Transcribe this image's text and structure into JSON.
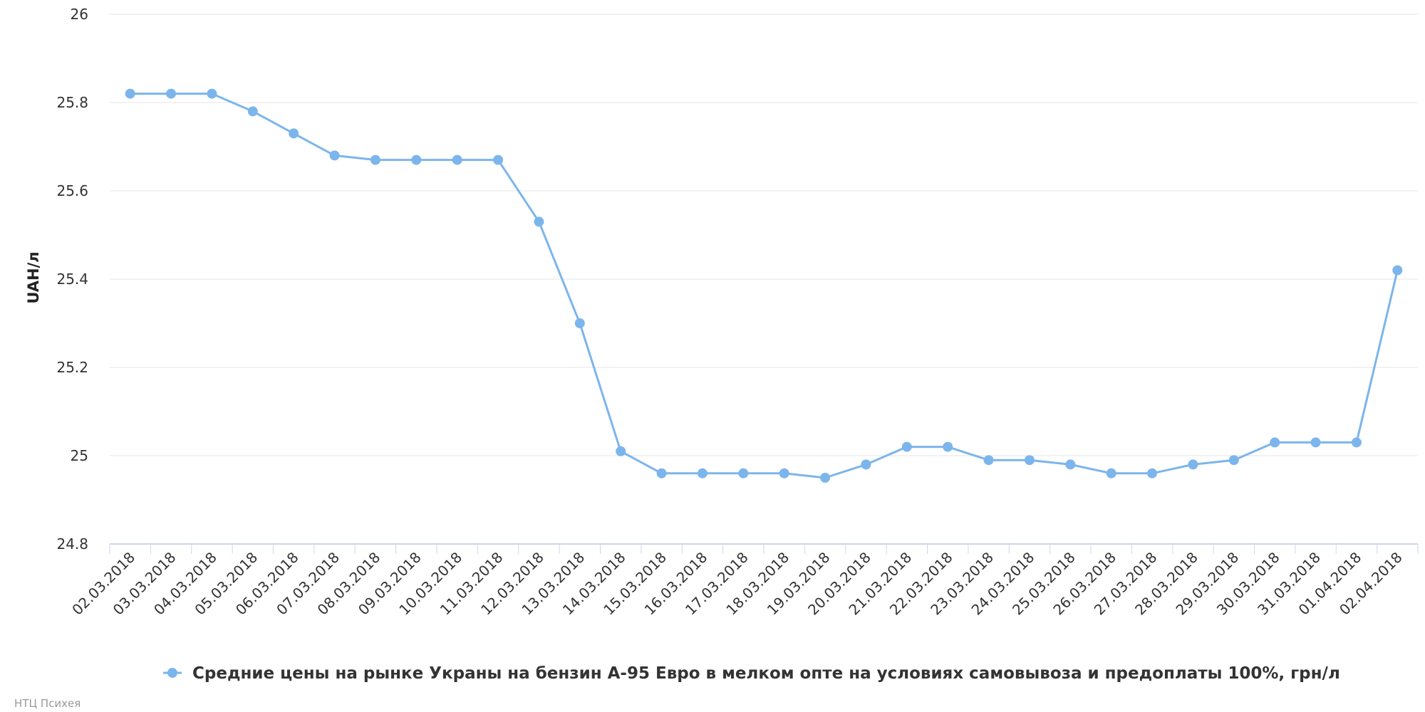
{
  "chart_data": {
    "type": "line",
    "title": "",
    "xlabel": "",
    "ylabel": "UAH/л",
    "ylim": [
      24.8,
      26
    ],
    "yticks": [
      "24.8",
      "25",
      "25.2",
      "25.4",
      "25.6",
      "25.8",
      "26"
    ],
    "grid": true,
    "legend_position": "bottom-center",
    "colors": {
      "series": "#7cb5ec",
      "grid": "#e6e6e6",
      "axis": "#ccd6eb"
    },
    "categories": [
      "02.03.2018",
      "03.03.2018",
      "04.03.2018",
      "05.03.2018",
      "06.03.2018",
      "07.03.2018",
      "08.03.2018",
      "09.03.2018",
      "10.03.2018",
      "11.03.2018",
      "12.03.2018",
      "13.03.2018",
      "14.03.2018",
      "15.03.2018",
      "16.03.2018",
      "17.03.2018",
      "18.03.2018",
      "19.03.2018",
      "20.03.2018",
      "21.03.2018",
      "22.03.2018",
      "23.03.2018",
      "24.03.2018",
      "25.03.2018",
      "26.03.2018",
      "27.03.2018",
      "28.03.2018",
      "29.03.2018",
      "30.03.2018",
      "31.03.2018",
      "01.04.2018",
      "02.04.2018"
    ],
    "series": [
      {
        "name": "Средние цены на рынке Украны на бензин А-95 Евро в мелком опте на условиях самовывоза и предоплаты 100%, грн/л",
        "values": [
          25.82,
          25.82,
          25.82,
          25.78,
          25.73,
          25.68,
          25.67,
          25.67,
          25.67,
          25.67,
          25.53,
          25.3,
          25.01,
          24.96,
          24.96,
          24.96,
          24.96,
          24.95,
          24.98,
          25.02,
          25.02,
          24.99,
          24.99,
          24.98,
          24.96,
          24.96,
          24.98,
          24.99,
          25.03,
          25.03,
          25.03,
          25.42
        ]
      }
    ]
  },
  "credits": "НТЦ Психея"
}
